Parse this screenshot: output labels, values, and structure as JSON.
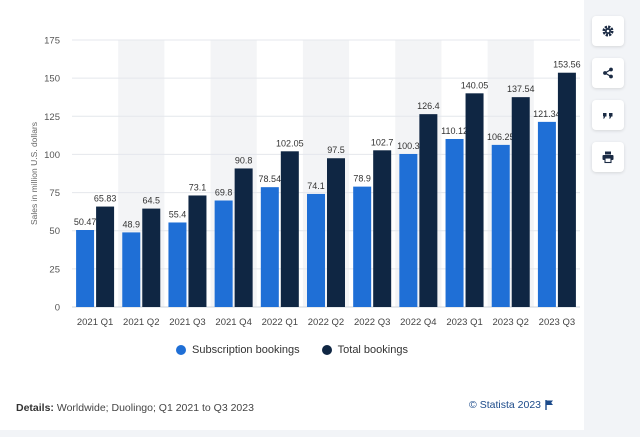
{
  "colors": {
    "subscription": "#1f6fd6",
    "total": "#0f2643",
    "grid": "#e4e7ec",
    "band": "#f3f4f6"
  },
  "chart_data": {
    "type": "bar",
    "categories": [
      "2021 Q1",
      "2021 Q2",
      "2021 Q3",
      "2021 Q4",
      "2022 Q1",
      "2022 Q2",
      "2022 Q3",
      "2022 Q4",
      "2023 Q1",
      "2023 Q2",
      "2023 Q3"
    ],
    "series": [
      {
        "name": "Subscription bookings",
        "values": [
          50.47,
          48.9,
          55.4,
          69.8,
          78.54,
          74.1,
          78.9,
          100.3,
          110.12,
          106.25,
          121.34
        ]
      },
      {
        "name": "Total bookings",
        "values": [
          65.83,
          64.5,
          73.1,
          90.8,
          102.05,
          97.5,
          102.7,
          126.4,
          140.05,
          137.54,
          153.56
        ]
      }
    ],
    "value_labels": {
      "Subscription bookings": [
        "50.47",
        "48.9",
        "55.4",
        "69.8",
        "78.54",
        "74.1",
        "78.9",
        "100.3",
        "110.12",
        "106.25",
        "121.34"
      ],
      "Total bookings": [
        "65.83",
        "64.5",
        "73.1",
        "90.8",
        "102.05",
        "97.5",
        "102.7",
        "126.4",
        "140.05",
        "137.54",
        "153.56"
      ]
    },
    "ylabel": "Sales in million U.S. dollars",
    "ylim": [
      0,
      175
    ],
    "yticks": [
      0,
      25,
      50,
      75,
      100,
      125,
      150,
      175
    ],
    "grid": true,
    "legend": "bottom-center"
  },
  "legend": {
    "subscription_label": "Subscription bookings",
    "total_label": "Total bookings"
  },
  "footer": {
    "details_label": "Details:",
    "details_text": " Worldwide; Duolingo; Q1 2021 to Q3 2023",
    "credit": "© Statista 2023"
  },
  "toolbar": {
    "icons": [
      "gear-icon",
      "share-icon",
      "quote-icon",
      "print-icon"
    ]
  }
}
